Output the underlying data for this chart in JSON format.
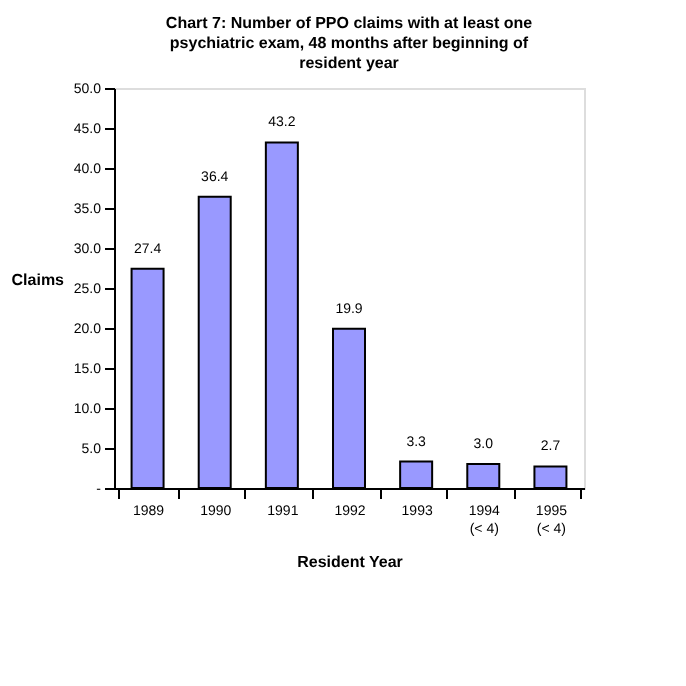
{
  "chart_data": {
    "type": "bar",
    "title": [
      "Chart 7: Number of PPO claims with at least one",
      "psychiatric exam, 48 months after beginning of",
      "resident year"
    ],
    "xlabel": "Resident Year",
    "ylabel": "Claims",
    "categories": [
      "1989",
      "1990",
      "1991",
      "1992",
      "1993",
      "1994 (< 4)",
      "1995 (< 4)"
    ],
    "values": [
      27.4,
      36.4,
      43.2,
      19.9,
      3.3,
      3.0,
      2.7
    ],
    "color": "#9999ff",
    "ylim": [
      0,
      50
    ],
    "yticks": [
      {
        "value": 0,
        "label": "-"
      },
      {
        "value": 5,
        "label": "5.0"
      },
      {
        "value": 10,
        "label": "10.0"
      },
      {
        "value": 15,
        "label": "15.0"
      },
      {
        "value": 20,
        "label": "20.0"
      },
      {
        "value": 25,
        "label": "25.0"
      },
      {
        "value": 30,
        "label": "30.0"
      },
      {
        "value": 35,
        "label": "35.0"
      },
      {
        "value": 40,
        "label": "40.0"
      },
      {
        "value": 45,
        "label": "45.0"
      },
      {
        "value": 50,
        "label": "50.0"
      }
    ],
    "value_labels": [
      "27.4",
      "36.4",
      "43.2",
      "19.9",
      "3.3",
      "3.0",
      "2.7"
    ],
    "grid": false
  }
}
